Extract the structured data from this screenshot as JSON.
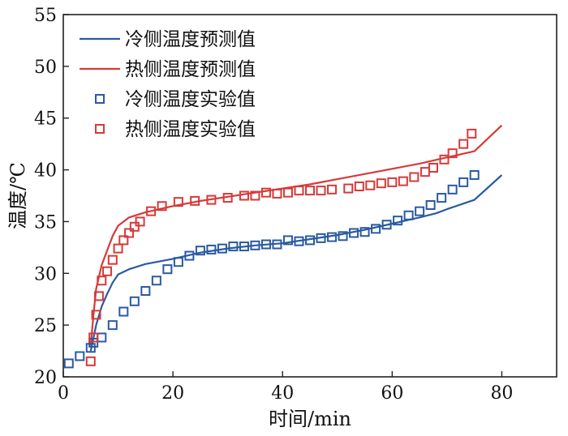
{
  "chart_data": {
    "type": "line",
    "title": "",
    "xlabel": "时间/min",
    "ylabel": "温度/℃",
    "xlim": [
      0,
      90
    ],
    "ylim": [
      20,
      55
    ],
    "xticks": [
      0,
      20,
      40,
      60,
      80
    ],
    "yticks": [
      20,
      25,
      30,
      35,
      40,
      45,
      50,
      55
    ],
    "grid": false,
    "legend_position": "top-left",
    "series": [
      {
        "name": "冷侧温度预测值",
        "kind": "line",
        "color": "#2a5aa0",
        "x": [
          5,
          6,
          7,
          8,
          9,
          10,
          12,
          15,
          20,
          25,
          30,
          35,
          40,
          45,
          50,
          55,
          60,
          65,
          68,
          70,
          75,
          80
        ],
        "y": [
          22.5,
          25.0,
          26.8,
          28.0,
          29.1,
          29.9,
          30.4,
          30.9,
          31.4,
          32.0,
          32.4,
          32.7,
          32.9,
          33.3,
          33.7,
          34.2,
          34.8,
          35.4,
          35.8,
          36.2,
          37.1,
          39.5
        ]
      },
      {
        "name": "热侧温度预测值",
        "kind": "line",
        "color": "#d63a3a",
        "x": [
          5,
          5.5,
          6,
          7,
          8,
          9,
          10,
          12,
          15,
          20,
          25,
          30,
          35,
          40,
          45,
          50,
          55,
          60,
          65,
          70,
          75,
          80
        ],
        "y": [
          23.0,
          26.0,
          28.5,
          30.8,
          32.2,
          33.6,
          34.6,
          35.4,
          35.9,
          36.5,
          37.0,
          37.4,
          37.8,
          38.2,
          38.6,
          39.1,
          39.6,
          40.1,
          40.6,
          41.2,
          41.8,
          44.3
        ]
      },
      {
        "name": "冷侧温度实验值",
        "kind": "scatter",
        "color": "#2a5aa0",
        "x": [
          1,
          3,
          5,
          5.5,
          7,
          9,
          11,
          13,
          15,
          17,
          19,
          21,
          23,
          25,
          27,
          29,
          31,
          33,
          35,
          37,
          39,
          41,
          43,
          45,
          47,
          49,
          51,
          53,
          55,
          57,
          59,
          61,
          63,
          65,
          67,
          69,
          71,
          73,
          75
        ],
        "y": [
          21.3,
          22.0,
          22.8,
          23.3,
          23.8,
          25.0,
          26.3,
          27.3,
          28.3,
          29.3,
          30.4,
          31.1,
          31.7,
          32.2,
          32.3,
          32.4,
          32.6,
          32.6,
          32.7,
          32.8,
          32.8,
          33.2,
          33.1,
          33.2,
          33.4,
          33.5,
          33.6,
          33.9,
          34.0,
          34.3,
          34.7,
          35.1,
          35.6,
          36.0,
          36.6,
          37.3,
          38.1,
          38.8,
          39.5
        ]
      },
      {
        "name": "热侧温度实验值",
        "kind": "scatter",
        "color": "#d63a3a",
        "x": [
          5,
          5.5,
          6,
          6.5,
          7,
          8,
          9,
          10,
          11,
          12,
          13,
          14,
          16,
          18,
          21,
          24,
          27,
          30,
          33,
          35,
          37,
          39,
          41,
          43,
          45,
          47,
          49,
          52,
          54,
          56,
          58,
          60,
          62,
          64,
          66,
          67.5,
          69.5,
          71,
          73,
          74.5
        ],
        "y": [
          21.5,
          23.8,
          26.0,
          27.8,
          29.3,
          30.2,
          31.3,
          32.4,
          33.2,
          33.9,
          34.5,
          35.0,
          36.0,
          36.5,
          36.9,
          37.0,
          37.1,
          37.3,
          37.5,
          37.5,
          37.8,
          37.7,
          37.8,
          38.0,
          38.0,
          38.0,
          38.1,
          38.2,
          38.4,
          38.5,
          38.7,
          38.8,
          38.9,
          39.3,
          39.8,
          40.2,
          41.0,
          41.6,
          42.5,
          43.5
        ]
      }
    ]
  }
}
